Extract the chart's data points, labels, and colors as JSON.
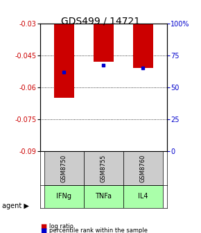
{
  "title": "GDS499 / 14721",
  "samples": [
    "GSM8750",
    "GSM8755",
    "GSM8760"
  ],
  "agents": [
    "IFNg",
    "TNFa",
    "IL4"
  ],
  "log_ratios": [
    -0.065,
    -0.048,
    -0.051
  ],
  "percentile_ranks": [
    0.62,
    0.67,
    0.65
  ],
  "ylim_left": [
    -0.09,
    -0.03
  ],
  "ylim_right": [
    0,
    1.0
  ],
  "yticks_left": [
    -0.09,
    -0.075,
    -0.06,
    -0.045,
    -0.03
  ],
  "ytick_labels_left": [
    "-0.09",
    "-0.075",
    "-0.06",
    "-0.045",
    "-0.03"
  ],
  "yticks_right": [
    0,
    0.25,
    0.5,
    0.75,
    1.0
  ],
  "ytick_labels_right": [
    "0",
    "25",
    "50",
    "75",
    "100%"
  ],
  "bar_color": "#cc0000",
  "dot_color": "#0000cc",
  "agent_color": "#aaffaa",
  "sample_bg": "#cccccc",
  "left_tick_color": "#cc0000",
  "right_tick_color": "#0000cc",
  "title_fontsize": 10,
  "bar_width": 0.5,
  "grid_ticks": [
    -0.045,
    -0.06,
    -0.075
  ]
}
